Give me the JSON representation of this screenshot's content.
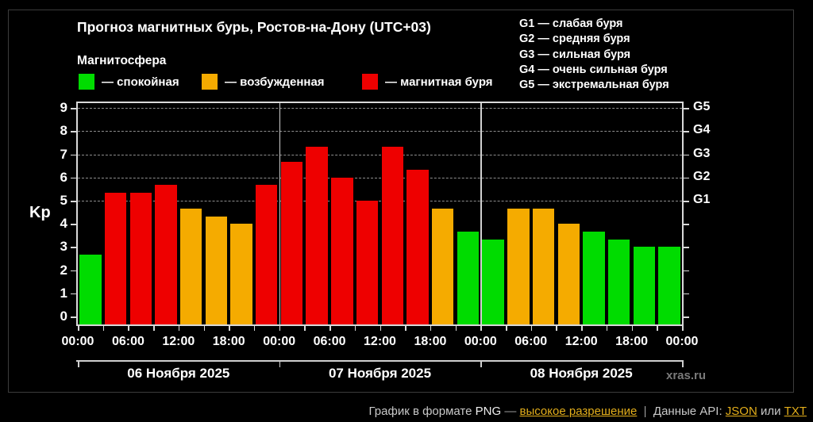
{
  "chart": {
    "title": "Прогноз магнитных бурь, Ростов-на-Дону (UTC+03)",
    "subtitle": "Магнитосфера",
    "ylabel": "Kp",
    "watermark": "xras.ru",
    "legend": [
      {
        "name": "quiet",
        "label": "— спокойная",
        "color": "#00DC00"
      },
      {
        "name": "excited",
        "label": "— возбужденная",
        "color": "#F5AB00"
      },
      {
        "name": "storm",
        "label": "— магнитная буря",
        "color": "#EE0000"
      }
    ],
    "g_legend": [
      "G1 — слабая буря",
      "G2 — средняя буря",
      "G3 — сильная буря",
      "G4 — очень сильная буря",
      "G5 — экстремальная буря"
    ]
  },
  "chart_data": {
    "type": "bar",
    "ylabel": "Kp",
    "ylim": [
      0,
      9
    ],
    "y_ticks": [
      0,
      1,
      2,
      3,
      4,
      5,
      6,
      7,
      8,
      9
    ],
    "grid_levels": [
      5,
      6,
      7,
      8,
      9
    ],
    "right_axis_labels": [
      "G1",
      "G2",
      "G3",
      "G4",
      "G5"
    ],
    "x_tick_step_hours": 3,
    "x_label_step_hours": 6,
    "x_tick_labels": [
      "00:00",
      "06:00",
      "12:00",
      "18:00",
      "00:00",
      "06:00",
      "12:00",
      "18:00",
      "00:00",
      "06:00",
      "12:00",
      "18:00",
      "00:00"
    ],
    "days": [
      {
        "label": "06 Ноября 2025",
        "values": [
          2.67,
          5.33,
          5.33,
          5.67,
          4.67,
          4.33,
          4.0,
          5.67
        ]
      },
      {
        "label": "07 Ноября 2025",
        "values": [
          6.67,
          7.33,
          6.0,
          5.0,
          7.33,
          6.33,
          4.67,
          3.67
        ]
      },
      {
        "label": "08 Ноября 2025",
        "values": [
          3.33,
          4.67,
          4.67,
          4.0,
          3.67,
          3.33,
          3.0,
          3.0
        ]
      }
    ],
    "colors": {
      "quiet": "#00DC00",
      "excited": "#F5AB00",
      "storm": "#EE0000"
    },
    "color_rule": {
      "quiet_below": 4,
      "storm_from": 5
    }
  },
  "footer": {
    "png_prefix": "График в формате ",
    "png_word": "PNG",
    "dash": " — ",
    "hires_link": "высокое разрешение",
    "separator": "  |  ",
    "api_prefix": "Данные API: ",
    "json_link": "JSON",
    "or_word": " или ",
    "txt_link": "TXT"
  }
}
